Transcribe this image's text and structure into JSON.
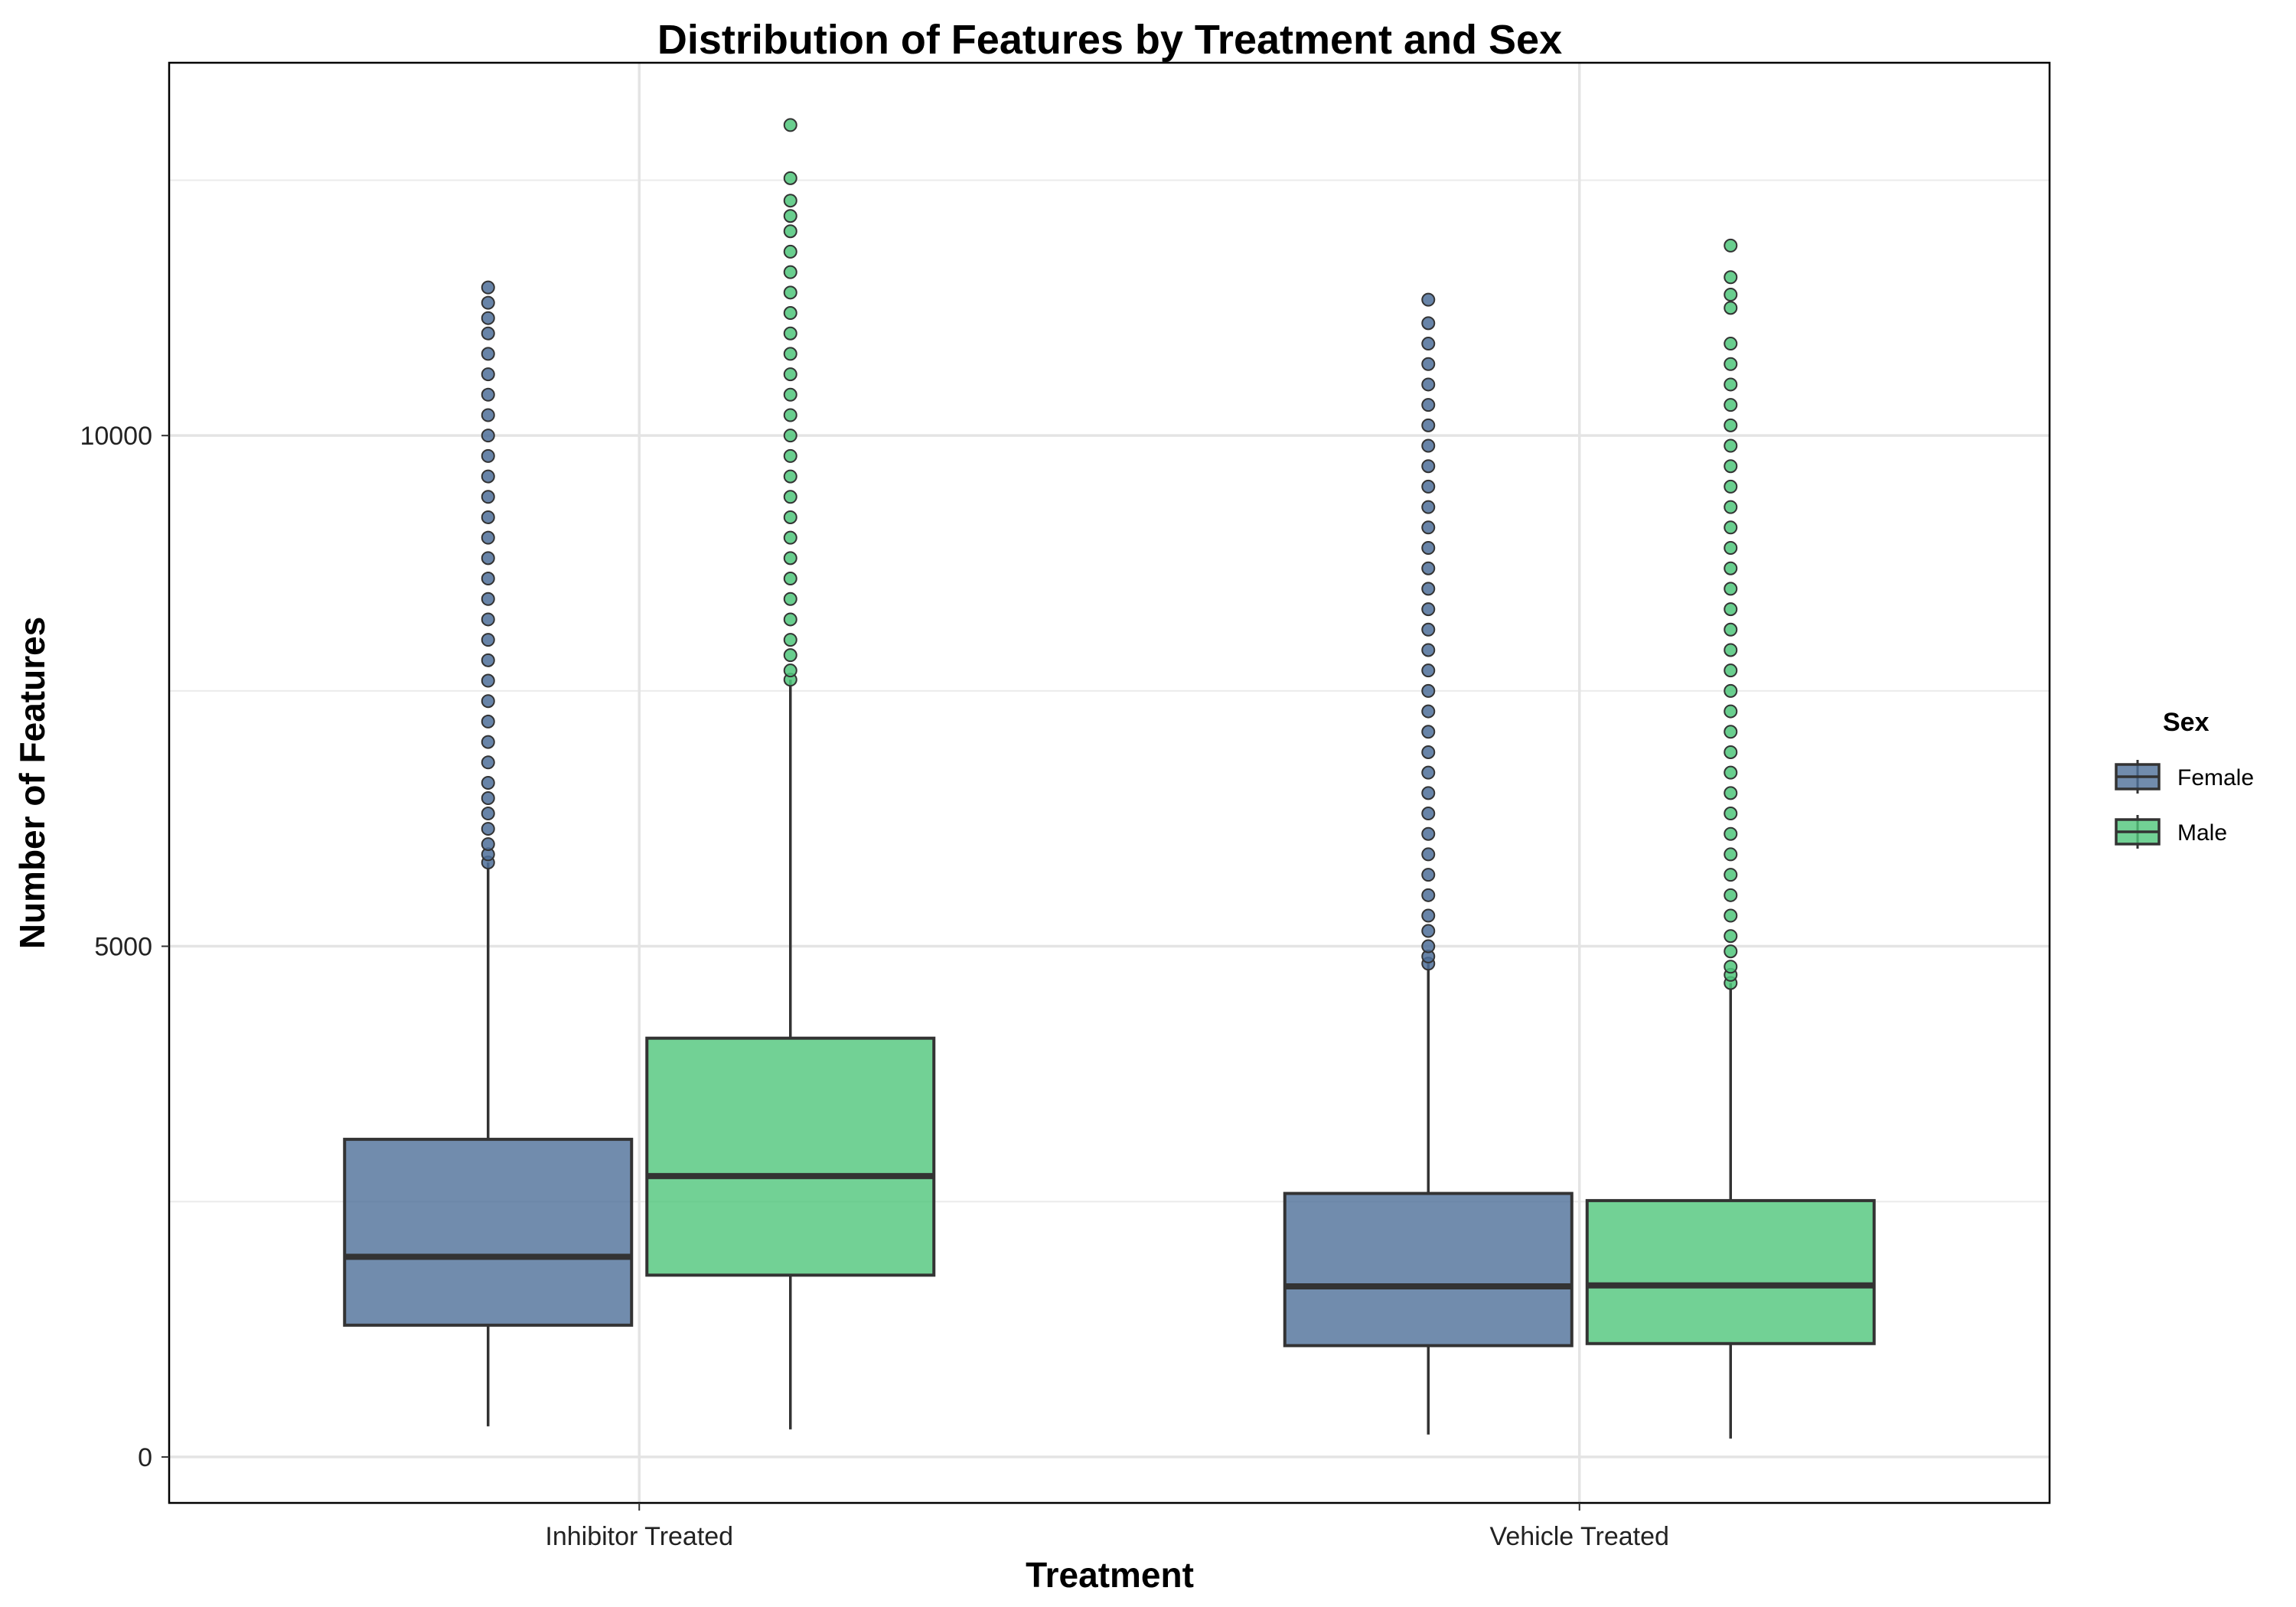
{
  "chart_data": {
    "type": "box",
    "title": "Distribution of Features by Treatment and Sex",
    "xlabel": "Treatment",
    "ylabel": "Number of Features",
    "categories": [
      "Inhibitor Treated",
      "Vehicle Treated"
    ],
    "yticks": [
      0,
      5000,
      10000
    ],
    "ytick_labels": [
      "0",
      "5000",
      "10000"
    ],
    "ylim": [
      -450,
      13650
    ],
    "grid": true,
    "legend": {
      "title": "Sex",
      "position": "right"
    },
    "series": [
      {
        "name": "Female",
        "color": "#4d6f99",
        "boxes": [
          {
            "category": "Inhibitor Treated",
            "whisker_low": 300,
            "q1": 1290,
            "median": 1960,
            "q3": 3110,
            "whisker_high": 5820,
            "outliers": [
              5820,
              5900,
              6000,
              6150,
              6300,
              6450,
              6600,
              6800,
              7000,
              7200,
              7400,
              7600,
              7800,
              8000,
              8200,
              8400,
              8600,
              8800,
              9000,
              9200,
              9400,
              9600,
              9800,
              10000,
              10200,
              10400,
              10600,
              10800,
              11000,
              11150,
              11300,
              11450
            ]
          },
          {
            "category": "Vehicle Treated",
            "whisker_low": 220,
            "q1": 1090,
            "median": 1670,
            "q3": 2580,
            "whisker_high": 4830,
            "outliers": [
              4830,
              4900,
              5000,
              5150,
              5300,
              5500,
              5700,
              5900,
              6100,
              6300,
              6500,
              6700,
              6900,
              7100,
              7300,
              7500,
              7700,
              7900,
              8100,
              8300,
              8500,
              8700,
              8900,
              9100,
              9300,
              9500,
              9700,
              9900,
              10100,
              10300,
              10500,
              10700,
              10900,
              11100,
              11330
            ]
          }
        ]
      },
      {
        "name": "Male",
        "color": "#4fc57a",
        "boxes": [
          {
            "category": "Inhibitor Treated",
            "whisker_low": 270,
            "q1": 1780,
            "median": 2750,
            "q3": 4100,
            "whisker_high": 7610,
            "outliers": [
              7610,
              7700,
              7850,
              8000,
              8200,
              8400,
              8600,
              8800,
              9000,
              9200,
              9400,
              9600,
              9800,
              10000,
              10200,
              10400,
              10600,
              10800,
              11000,
              11200,
              11400,
              11600,
              11800,
              12000,
              12150,
              12300,
              12520,
              13040
            ]
          },
          {
            "category": "Vehicle Treated",
            "whisker_low": 180,
            "q1": 1110,
            "median": 1680,
            "q3": 2510,
            "whisker_high": 4640,
            "outliers": [
              4640,
              4720,
              4800,
              4950,
              5100,
              5300,
              5500,
              5700,
              5900,
              6100,
              6300,
              6500,
              6700,
              6900,
              7100,
              7300,
              7500,
              7700,
              7900,
              8100,
              8300,
              8500,
              8700,
              8900,
              9100,
              9300,
              9500,
              9700,
              9900,
              10100,
              10300,
              10500,
              10700,
              10900,
              11250,
              11380,
              11550,
              11860
            ]
          }
        ]
      }
    ]
  }
}
